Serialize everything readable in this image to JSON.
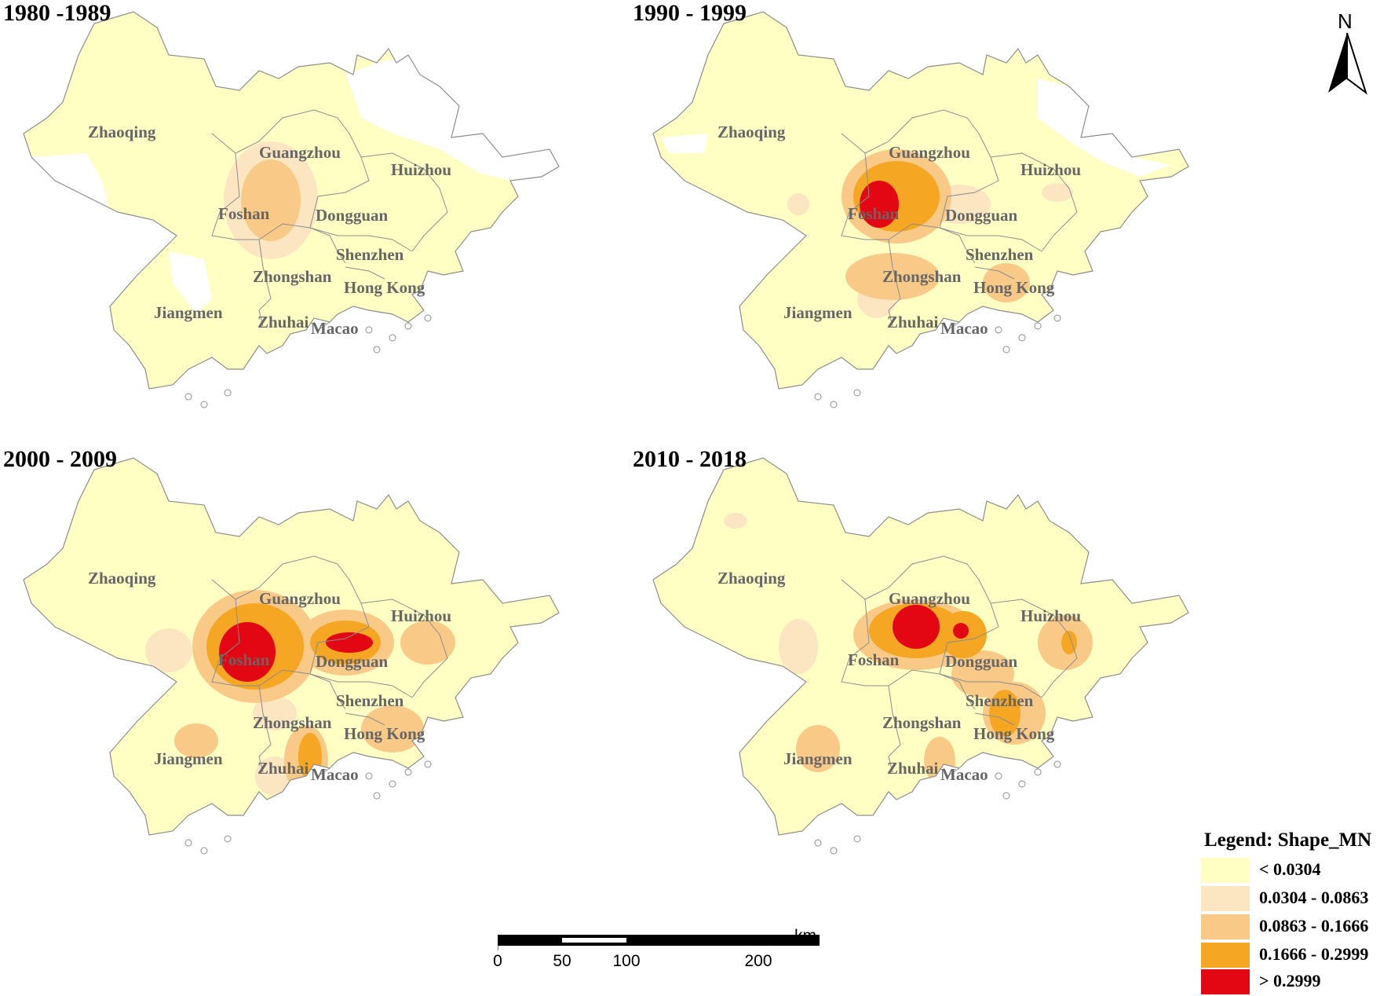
{
  "colors": {
    "class1": "#FFFFC4",
    "class2": "#FCE6C2",
    "class3": "#F9CA87",
    "class4": "#F5A623",
    "class5": "#E30613",
    "boundary": "#8C8C8C",
    "background": "#FFFFFF",
    "label": "#666666"
  },
  "cities": {
    "zhaoqing": "Zhaoqing",
    "guangzhou": "Guangzhou",
    "huizhou": "Huizhou",
    "foshan": "Foshan",
    "dongguan": "Dongguan",
    "shenzhen": "Shenzhen",
    "zhongshan": "Zhongshan",
    "hongkong": "Hong Kong",
    "jiangmen": "Jiangmen",
    "zhuhai": "Zhuhai",
    "macao": "Macao"
  },
  "panels": [
    {
      "title": "1980 -1989",
      "hotspots": [
        {
          "cx": 345,
          "cy": 255,
          "rx": 38,
          "ry": 52,
          "cls": "class3"
        },
        {
          "cx": 345,
          "cy": 255,
          "rx": 60,
          "ry": 75,
          "cls": "class2"
        }
      ]
    },
    {
      "title": "1990 - 1999",
      "hotspots": [
        {
          "cx": 340,
          "cy": 250,
          "rx": 70,
          "ry": 60,
          "cls": "class3"
        },
        {
          "cx": 340,
          "cy": 250,
          "rx": 55,
          "ry": 45,
          "cls": "class4"
        },
        {
          "cx": 318,
          "cy": 260,
          "rx": 25,
          "ry": 30,
          "cls": "class5"
        },
        {
          "cx": 335,
          "cy": 352,
          "rx": 60,
          "ry": 30,
          "cls": "class3"
        },
        {
          "cx": 315,
          "cy": 380,
          "rx": 25,
          "ry": 25,
          "cls": "class2"
        },
        {
          "cx": 480,
          "cy": 360,
          "rx": 30,
          "ry": 25,
          "cls": "class3"
        },
        {
          "cx": 420,
          "cy": 260,
          "rx": 40,
          "ry": 25,
          "cls": "class2"
        },
        {
          "cx": 545,
          "cy": 245,
          "rx": 20,
          "ry": 12,
          "cls": "class2"
        },
        {
          "cx": 215,
          "cy": 260,
          "rx": 14,
          "ry": 14,
          "cls": "class2"
        }
      ]
    },
    {
      "title": "2000 - 2009",
      "hotspots": [
        {
          "cx": 325,
          "cy": 255,
          "rx": 80,
          "ry": 72,
          "cls": "class3"
        },
        {
          "cx": 325,
          "cy": 255,
          "rx": 62,
          "ry": 55,
          "cls": "class4"
        },
        {
          "cx": 315,
          "cy": 262,
          "rx": 36,
          "ry": 38,
          "cls": "class5"
        },
        {
          "cx": 440,
          "cy": 250,
          "rx": 62,
          "ry": 42,
          "cls": "class3"
        },
        {
          "cx": 440,
          "cy": 250,
          "rx": 45,
          "ry": 28,
          "cls": "class4"
        },
        {
          "cx": 445,
          "cy": 250,
          "rx": 30,
          "ry": 13,
          "cls": "class5"
        },
        {
          "cx": 545,
          "cy": 250,
          "rx": 35,
          "ry": 28,
          "cls": "class3"
        },
        {
          "cx": 215,
          "cy": 260,
          "rx": 30,
          "ry": 28,
          "cls": "class2"
        },
        {
          "cx": 250,
          "cy": 375,
          "rx": 28,
          "ry": 22,
          "cls": "class3"
        },
        {
          "cx": 390,
          "cy": 400,
          "rx": 28,
          "ry": 45,
          "cls": "class3"
        },
        {
          "cx": 395,
          "cy": 395,
          "rx": 15,
          "ry": 30,
          "cls": "class4"
        },
        {
          "cx": 500,
          "cy": 360,
          "rx": 40,
          "ry": 30,
          "cls": "class3"
        },
        {
          "cx": 350,
          "cy": 340,
          "rx": 28,
          "ry": 22,
          "cls": "class2"
        },
        {
          "cx": 350,
          "cy": 420,
          "rx": 25,
          "ry": 25,
          "cls": "class2"
        }
      ]
    },
    {
      "title": "2010 - 2018",
      "hotspots": [
        {
          "cx": 365,
          "cy": 240,
          "rx": 80,
          "ry": 45,
          "cls": "class3"
        },
        {
          "cx": 365,
          "cy": 235,
          "rx": 60,
          "ry": 35,
          "cls": "class4"
        },
        {
          "cx": 365,
          "cy": 230,
          "rx": 30,
          "ry": 28,
          "cls": "class5"
        },
        {
          "cx": 425,
          "cy": 240,
          "rx": 30,
          "ry": 30,
          "cls": "class4"
        },
        {
          "cx": 422,
          "cy": 235,
          "rx": 10,
          "ry": 10,
          "cls": "class5"
        },
        {
          "cx": 450,
          "cy": 290,
          "rx": 40,
          "ry": 30,
          "cls": "class3"
        },
        {
          "cx": 490,
          "cy": 340,
          "rx": 40,
          "ry": 40,
          "cls": "class3"
        },
        {
          "cx": 478,
          "cy": 340,
          "rx": 20,
          "ry": 30,
          "cls": "class4"
        },
        {
          "cx": 555,
          "cy": 250,
          "rx": 35,
          "ry": 35,
          "cls": "class3"
        },
        {
          "cx": 560,
          "cy": 250,
          "rx": 10,
          "ry": 15,
          "cls": "class4"
        },
        {
          "cx": 240,
          "cy": 385,
          "rx": 28,
          "ry": 30,
          "cls": "class3"
        },
        {
          "cx": 215,
          "cy": 255,
          "rx": 25,
          "ry": 35,
          "cls": "class2"
        },
        {
          "cx": 395,
          "cy": 400,
          "rx": 20,
          "ry": 30,
          "cls": "class3"
        },
        {
          "cx": 135,
          "cy": 95,
          "rx": 15,
          "ry": 10,
          "cls": "class2"
        }
      ]
    }
  ],
  "north": {
    "label": "N"
  },
  "scalebar": {
    "unit": "km",
    "ticks": [
      "0",
      "50",
      "100",
      "200"
    ]
  },
  "legend": {
    "title": "Legend: Shape_MN",
    "items": [
      {
        "label": "< 0.0304",
        "cls": "class1"
      },
      {
        "label": "0.0304 - 0.0863",
        "cls": "class2"
      },
      {
        "label": "0.0863 - 0.1666",
        "cls": "class3"
      },
      {
        "label": "0.1666 - 0.2999",
        "cls": "class4"
      },
      {
        "label": "> 0.2999",
        "cls": "class5"
      }
    ]
  }
}
